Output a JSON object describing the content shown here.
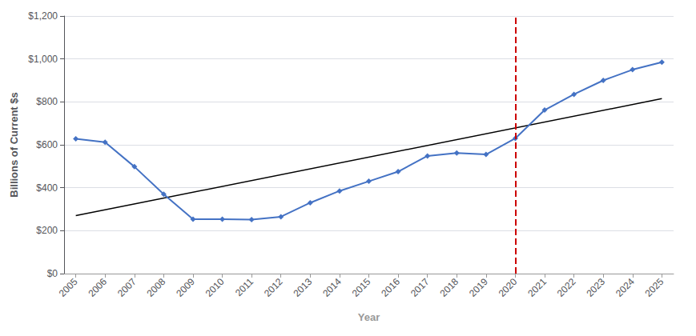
{
  "chart_data": {
    "type": "line",
    "x_label": "Year",
    "y_label": "Billions of Current $s",
    "series": [
      {
        "x": [
          2005,
          2006,
          2007,
          2008,
          2009,
          2010,
          2011,
          2012,
          2013,
          2014,
          2015,
          2016,
          2017,
          2018,
          2019,
          2020,
          2021,
          2022,
          2023,
          2024,
          2025
        ],
        "values": [
          628,
          612,
          498,
          370,
          253,
          253,
          252,
          265,
          330,
          385,
          430,
          475,
          548,
          562,
          555,
          630,
          762,
          835,
          900,
          950,
          985
        ],
        "color": "#4472C4",
        "marker": "diamond",
        "line_style": "solid"
      },
      {
        "x": [
          2005,
          2025
        ],
        "values": [
          270,
          815
        ],
        "color": "#000000",
        "line_style": "solid"
      }
    ],
    "vlines": [
      {
        "x": 2020,
        "color": "#CC0000",
        "line_style": "dashed"
      }
    ],
    "xlim": [
      2004.6,
      2025.4
    ],
    "xticks": [
      2005,
      2006,
      2007,
      2008,
      2009,
      2010,
      2011,
      2012,
      2013,
      2014,
      2015,
      2016,
      2017,
      2018,
      2019,
      2020,
      2021,
      2022,
      2023,
      2024,
      2025
    ],
    "ylim": [
      0,
      1200
    ],
    "yticks": [
      {
        "value": 0,
        "label": "$0"
      },
      {
        "value": 200,
        "label": "$200"
      },
      {
        "value": 400,
        "label": "$400"
      },
      {
        "value": 600,
        "label": "$600"
      },
      {
        "value": 800,
        "label": "$800"
      },
      {
        "value": 1000,
        "label": "$1,000"
      },
      {
        "value": 1200,
        "label": "$1,200"
      }
    ],
    "grid": true
  }
}
